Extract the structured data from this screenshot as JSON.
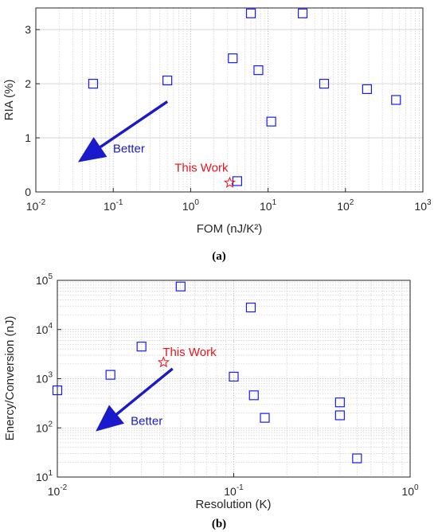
{
  "colors": {
    "marker": "#1a1aff",
    "highlight": "#e8141c",
    "arrow": "#1a1acc",
    "axis": "#262626",
    "grid": "#c8c8c8"
  },
  "captions": {
    "a": "(a)",
    "b": "(b)"
  },
  "chart_data": [
    {
      "type": "scatter",
      "panel": "a",
      "xlabel": "FOM (nJ/K²)",
      "ylabel": "RIA (%)",
      "xscale": "log",
      "xlim": [
        0.01,
        1000
      ],
      "ylim": [
        0,
        3.4
      ],
      "xticks": [
        {
          "v": 0.01,
          "b": "10",
          "e": "-2"
        },
        {
          "v": 0.1,
          "b": "10",
          "e": "-1"
        },
        {
          "v": 1,
          "b": "10",
          "e": "0"
        },
        {
          "v": 10,
          "b": "10",
          "e": "1"
        },
        {
          "v": 100,
          "b": "10",
          "e": "2"
        },
        {
          "v": 1000,
          "b": "10",
          "e": "3"
        }
      ],
      "yticks": [
        {
          "v": 0,
          "label": "0"
        },
        {
          "v": 1,
          "label": "1"
        },
        {
          "v": 2,
          "label": "2"
        },
        {
          "v": 3,
          "label": "3"
        }
      ],
      "grid": "x-minor and major dotted, y major",
      "points": [
        {
          "x": 0.055,
          "y": 2.0
        },
        {
          "x": 0.5,
          "y": 2.06
        },
        {
          "x": 3.5,
          "y": 2.47
        },
        {
          "x": 4.0,
          "y": 0.2
        },
        {
          "x": 6.0,
          "y": 3.3
        },
        {
          "x": 7.5,
          "y": 2.25
        },
        {
          "x": 11.0,
          "y": 1.3
        },
        {
          "x": 28.0,
          "y": 3.3
        },
        {
          "x": 53.0,
          "y": 2.0
        },
        {
          "x": 190.0,
          "y": 1.9
        },
        {
          "x": 450.0,
          "y": 1.7
        }
      ],
      "this_work": {
        "x": 3.2,
        "y": 0.17,
        "label": "This Work"
      },
      "arrow": {
        "label": "Better",
        "from": {
          "x": 0.5,
          "y": 1.67
        },
        "to": {
          "x": 0.035,
          "y": 0.55
        }
      }
    },
    {
      "type": "scatter",
      "panel": "b",
      "xlabel": "Resolution (K)",
      "ylabel": "Enercy/Conversion (nJ)",
      "xscale": "log",
      "yscale": "log",
      "xlim": [
        0.01,
        1
      ],
      "ylim": [
        10,
        100000
      ],
      "xticks": [
        {
          "v": 0.01,
          "b": "10",
          "e": "-2"
        },
        {
          "v": 0.1,
          "b": "10",
          "e": "-1"
        },
        {
          "v": 1,
          "b": "10",
          "e": "0"
        }
      ],
      "yticks": [
        {
          "v": 10,
          "b": "10",
          "e": "1"
        },
        {
          "v": 100,
          "b": "10",
          "e": "2"
        },
        {
          "v": 1000,
          "b": "10",
          "e": "3"
        },
        {
          "v": 10000,
          "b": "10",
          "e": "4"
        },
        {
          "v": 100000,
          "b": "10",
          "e": "5"
        }
      ],
      "grid": "x and y minor and major dotted",
      "points": [
        {
          "x": 0.01,
          "y": 580
        },
        {
          "x": 0.02,
          "y": 1200
        },
        {
          "x": 0.03,
          "y": 4500
        },
        {
          "x": 0.05,
          "y": 75000
        },
        {
          "x": 0.1,
          "y": 1100
        },
        {
          "x": 0.125,
          "y": 28000
        },
        {
          "x": 0.13,
          "y": 460
        },
        {
          "x": 0.15,
          "y": 160
        },
        {
          "x": 0.4,
          "y": 330
        },
        {
          "x": 0.4,
          "y": 180
        },
        {
          "x": 0.5,
          "y": 24
        }
      ],
      "this_work": {
        "x": 0.04,
        "y": 2150,
        "label": "This Work"
      },
      "arrow": {
        "label": "Better",
        "from": {
          "x": 0.045,
          "y": 1600
        },
        "to": {
          "x": 0.0165,
          "y": 85
        }
      }
    }
  ]
}
